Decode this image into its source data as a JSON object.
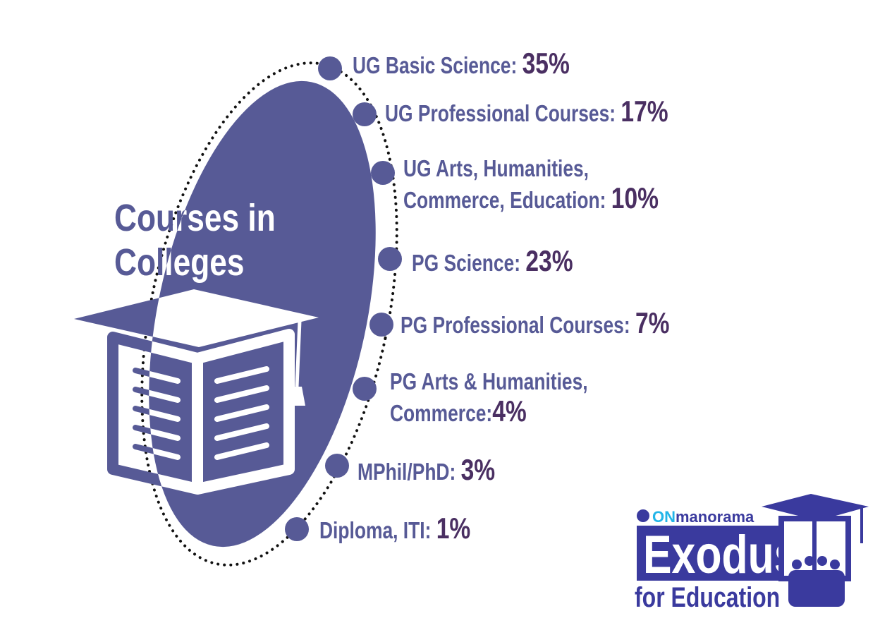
{
  "title": [
    "Courses in",
    "Colleges"
  ],
  "items": [
    {
      "label": [
        "UG Basic Science: "
      ],
      "value": "35%"
    },
    {
      "label": [
        "UG Professional Courses: "
      ],
      "value": "17%"
    },
    {
      "label": [
        "UG Arts, Humanities,",
        "Commerce, Education: "
      ],
      "value": "10%"
    },
    {
      "label": [
        "PG Science: "
      ],
      "value": "23%"
    },
    {
      "label": [
        "PG Professional Courses: "
      ],
      "value": "7%"
    },
    {
      "label": [
        "PG Arts & Humanities,",
        "Commerce:"
      ],
      "value": "4%"
    },
    {
      "label": [
        "MPhil/PhD: "
      ],
      "value": "3%"
    },
    {
      "label": [
        "Diploma, ITI: "
      ],
      "value": "1%"
    }
  ],
  "logo": {
    "brand_prefix": "ON",
    "brand": "manorama",
    "name": "Exodus",
    "tagline": "for Education"
  }
}
